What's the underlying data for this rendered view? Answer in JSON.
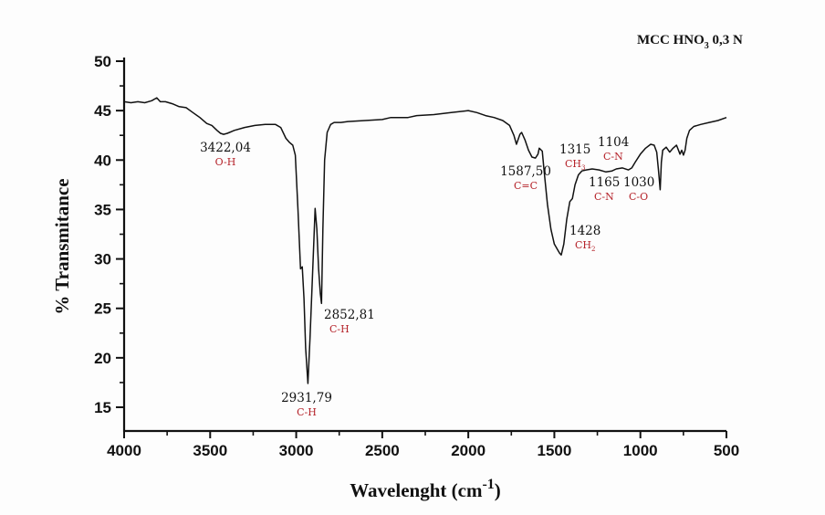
{
  "chart_data": {
    "type": "line",
    "title": "MCC HNO3 0,3 N",
    "title_parts": {
      "pre": "MCC HNO",
      "sub": "3",
      "post": " 0,3 N"
    },
    "xlabel": "Wavelenght (cm-1)",
    "xlabel_parts": {
      "pre": "Wavelenght (cm",
      "sup": "-1",
      "post": ")"
    },
    "ylabel": "% Transmitance",
    "xlim": [
      4000,
      500
    ],
    "ylim": [
      12.6,
      50
    ],
    "x_reversed": true,
    "grid": false,
    "legend": "none",
    "x_ticks": [
      4000,
      3500,
      3000,
      2500,
      2000,
      1500,
      1000,
      500
    ],
    "x_minor_step": 250,
    "y_ticks": [
      15,
      20,
      25,
      30,
      35,
      40,
      45,
      50
    ],
    "y_minor_step": 2.5,
    "line_color": "#111111",
    "annotation_color": "#b5232a",
    "series": [
      {
        "name": "MCC HNO3 0,3 N",
        "points": [
          [
            4000,
            45.9
          ],
          [
            3960,
            45.8
          ],
          [
            3920,
            45.9
          ],
          [
            3880,
            45.8
          ],
          [
            3840,
            46.0
          ],
          [
            3810,
            46.3
          ],
          [
            3790,
            45.9
          ],
          [
            3760,
            45.9
          ],
          [
            3720,
            45.7
          ],
          [
            3680,
            45.4
          ],
          [
            3640,
            45.3
          ],
          [
            3600,
            44.8
          ],
          [
            3560,
            44.3
          ],
          [
            3520,
            43.7
          ],
          [
            3490,
            43.5
          ],
          [
            3460,
            43.0
          ],
          [
            3440,
            42.7
          ],
          [
            3422,
            42.6
          ],
          [
            3400,
            42.7
          ],
          [
            3360,
            43.0
          ],
          [
            3300,
            43.3
          ],
          [
            3240,
            43.5
          ],
          [
            3180,
            43.6
          ],
          [
            3120,
            43.6
          ],
          [
            3090,
            43.3
          ],
          [
            3060,
            42.2
          ],
          [
            3040,
            41.8
          ],
          [
            3020,
            41.5
          ],
          [
            3005,
            40.5
          ],
          [
            2990,
            35.0
          ],
          [
            2975,
            29.0
          ],
          [
            2965,
            29.2
          ],
          [
            2955,
            26.0
          ],
          [
            2945,
            21.0
          ],
          [
            2931.79,
            17.4
          ],
          [
            2920,
            22.0
          ],
          [
            2905,
            28.5
          ],
          [
            2890,
            35.1
          ],
          [
            2880,
            33.0
          ],
          [
            2870,
            29.0
          ],
          [
            2860,
            26.5
          ],
          [
            2852.81,
            25.5
          ],
          [
            2845,
            33.0
          ],
          [
            2835,
            40.0
          ],
          [
            2820,
            42.8
          ],
          [
            2800,
            43.6
          ],
          [
            2780,
            43.8
          ],
          [
            2740,
            43.8
          ],
          [
            2700,
            43.9
          ],
          [
            2600,
            44.0
          ],
          [
            2500,
            44.1
          ],
          [
            2450,
            44.3
          ],
          [
            2400,
            44.3
          ],
          [
            2350,
            44.3
          ],
          [
            2300,
            44.5
          ],
          [
            2200,
            44.6
          ],
          [
            2100,
            44.8
          ],
          [
            2000,
            45.0
          ],
          [
            1950,
            44.8
          ],
          [
            1900,
            44.5
          ],
          [
            1850,
            44.3
          ],
          [
            1800,
            44.0
          ],
          [
            1760,
            43.5
          ],
          [
            1735,
            42.5
          ],
          [
            1720,
            41.6
          ],
          [
            1700,
            42.6
          ],
          [
            1690,
            42.8
          ],
          [
            1670,
            42.0
          ],
          [
            1650,
            41.0
          ],
          [
            1630,
            40.3
          ],
          [
            1610,
            40.2
          ],
          [
            1595,
            40.6
          ],
          [
            1587.5,
            41.2
          ],
          [
            1570,
            40.9
          ],
          [
            1560,
            39.0
          ],
          [
            1540,
            35.5
          ],
          [
            1520,
            33.0
          ],
          [
            1500,
            31.5
          ],
          [
            1470,
            30.6
          ],
          [
            1460,
            30.4
          ],
          [
            1445,
            31.5
          ],
          [
            1428,
            34.0
          ],
          [
            1410,
            35.8
          ],
          [
            1395,
            36.1
          ],
          [
            1380,
            37.5
          ],
          [
            1360,
            38.5
          ],
          [
            1340,
            38.9
          ],
          [
            1315,
            39.0
          ],
          [
            1280,
            39.1
          ],
          [
            1240,
            39.0
          ],
          [
            1200,
            38.8
          ],
          [
            1165,
            38.9
          ],
          [
            1140,
            39.1
          ],
          [
            1104,
            39.2
          ],
          [
            1070,
            39.0
          ],
          [
            1050,
            39.2
          ],
          [
            1030,
            39.8
          ],
          [
            1000,
            40.6
          ],
          [
            970,
            41.2
          ],
          [
            940,
            41.6
          ],
          [
            920,
            41.5
          ],
          [
            905,
            40.8
          ],
          [
            895,
            39.0
          ],
          [
            885,
            37.0
          ],
          [
            878,
            39.8
          ],
          [
            870,
            41.0
          ],
          [
            850,
            41.3
          ],
          [
            830,
            40.8
          ],
          [
            810,
            41.2
          ],
          [
            790,
            41.5
          ],
          [
            770,
            40.6
          ],
          [
            760,
            41.0
          ],
          [
            750,
            40.5
          ],
          [
            740,
            41.0
          ],
          [
            730,
            42.2
          ],
          [
            715,
            43.0
          ],
          [
            690,
            43.4
          ],
          [
            650,
            43.6
          ],
          [
            600,
            43.8
          ],
          [
            550,
            44.0
          ],
          [
            500,
            44.3
          ]
        ]
      }
    ],
    "annotations": [
      {
        "value": "3422,04",
        "group": "O-H",
        "group_sub": "",
        "x": 3422,
        "anchor_y": 42.6
      },
      {
        "value": "2931,79",
        "group": "C-H",
        "group_sub": "",
        "x": 2931.79,
        "anchor_y": 17.4
      },
      {
        "value": "2852,81",
        "group": "C-H",
        "group_sub": "",
        "x": 2852.81,
        "anchor_y": 25.5
      },
      {
        "value": "1587,50",
        "group": "C=C",
        "group_sub": "",
        "x": 1587.5,
        "anchor_y": 41.2
      },
      {
        "value": "1428",
        "group": "CH",
        "group_sub": "2",
        "x": 1428,
        "anchor_y": 30.4
      },
      {
        "value": "1315",
        "group": "CH",
        "group_sub": "3",
        "x": 1315,
        "anchor_y": 39.0
      },
      {
        "value": "1165",
        "group": "C-N",
        "group_sub": "",
        "x": 1165,
        "anchor_y": 38.9
      },
      {
        "value": "1104",
        "group": "C-N",
        "group_sub": "",
        "x": 1104,
        "anchor_y": 39.2
      },
      {
        "value": "1030",
        "group": "C-O",
        "group_sub": "",
        "x": 1030,
        "anchor_y": 39.8
      }
    ]
  }
}
